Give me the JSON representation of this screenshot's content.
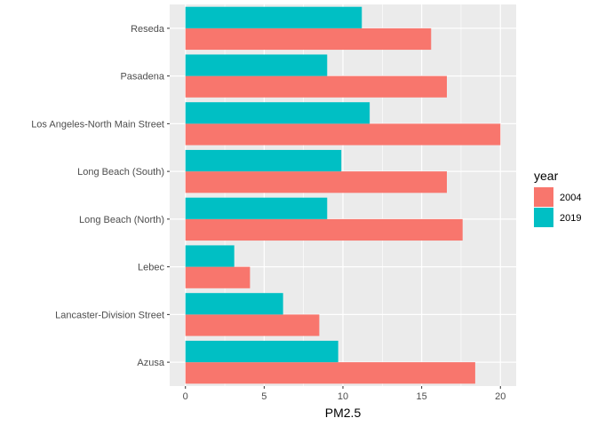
{
  "chart_data": {
    "type": "bar",
    "orientation": "horizontal",
    "categories": [
      "Azusa",
      "Lancaster-Division Street",
      "Lebec",
      "Long Beach (North)",
      "Long Beach (South)",
      "Los Angeles-North Main Street",
      "Pasadena",
      "Reseda"
    ],
    "series": [
      {
        "name": "2004",
        "color": "#F8766D",
        "values": [
          18.4,
          8.5,
          4.1,
          17.6,
          16.6,
          20.0,
          16.6,
          15.6
        ]
      },
      {
        "name": "2019",
        "color": "#00BFC4",
        "values": [
          9.7,
          6.2,
          3.1,
          9.0,
          9.9,
          11.7,
          9.0,
          11.2
        ]
      }
    ],
    "xlabel": "PM2.5",
    "ylabel": "",
    "xlim": [
      -1,
      21
    ],
    "xticks": [
      0,
      5,
      10,
      15,
      20
    ],
    "grid": true,
    "legend": {
      "title": "year",
      "position": "right"
    },
    "panel_background": "#EBEBEB"
  }
}
